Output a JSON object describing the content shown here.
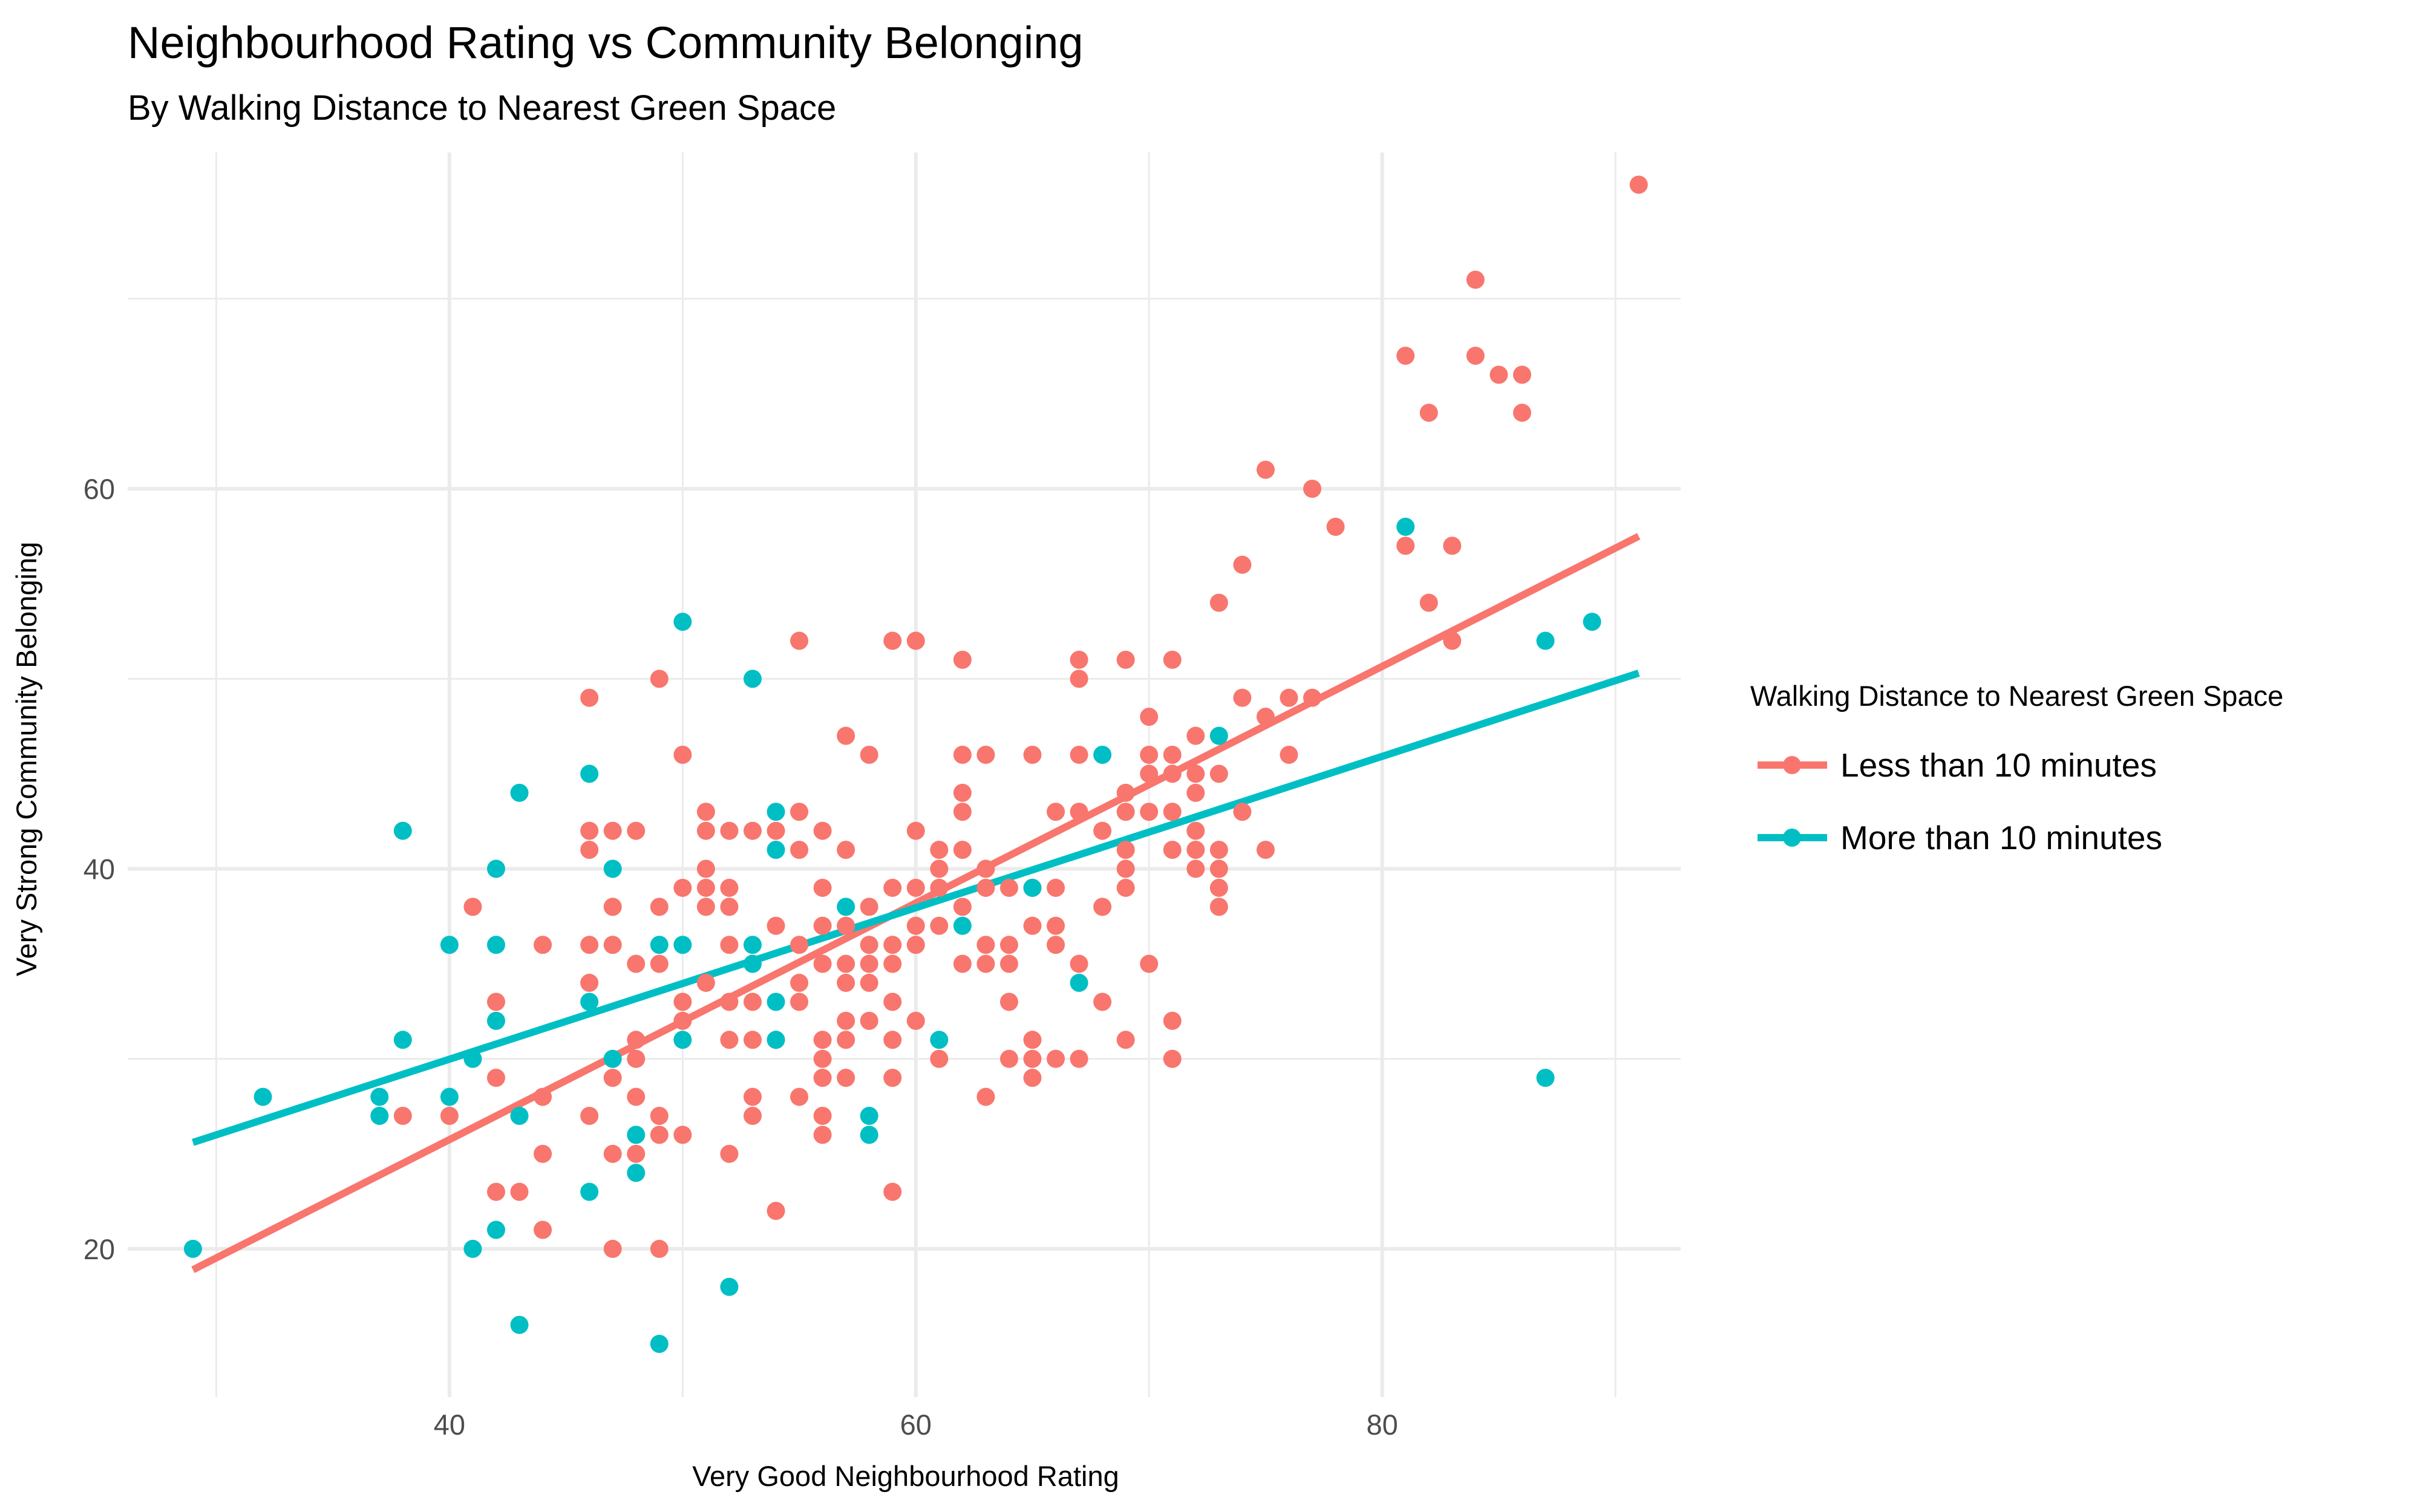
{
  "chart_data": {
    "type": "scatter",
    "title": "Neighbourhood Rating vs Community Belonging",
    "subtitle": "By Walking Distance to Nearest Green Space",
    "xlabel": "Very Good Neighbourhood Rating",
    "ylabel": "Very Strong Community Belonging",
    "xlim": [
      26.2,
      92.8
    ],
    "ylim": [
      12.2,
      77.7
    ],
    "x_ticks": [
      40,
      60,
      80
    ],
    "y_ticks": [
      20,
      40,
      60
    ],
    "grid": true,
    "legend": {
      "title": "Walking Distance to Nearest Green Space",
      "position": "right"
    },
    "series": [
      {
        "name": "Less than 10 minutes",
        "color": "#F8766D",
        "trend": {
          "x": [
            29,
            91
          ],
          "y": [
            18.9,
            57.5
          ]
        },
        "points": [
          [
            38,
            27
          ],
          [
            40,
            27
          ],
          [
            41,
            38
          ],
          [
            42,
            23
          ],
          [
            42,
            29
          ],
          [
            42,
            33
          ],
          [
            43,
            23
          ],
          [
            44,
            21
          ],
          [
            44,
            25
          ],
          [
            44,
            28
          ],
          [
            44,
            36
          ],
          [
            46,
            27
          ],
          [
            46,
            34
          ],
          [
            46,
            36
          ],
          [
            46,
            41
          ],
          [
            46,
            42
          ],
          [
            46,
            49
          ],
          [
            47,
            20
          ],
          [
            47,
            25
          ],
          [
            47,
            29
          ],
          [
            47,
            36
          ],
          [
            47,
            38
          ],
          [
            47,
            42
          ],
          [
            48,
            25
          ],
          [
            48,
            28
          ],
          [
            48,
            30
          ],
          [
            48,
            31
          ],
          [
            48,
            35
          ],
          [
            48,
            42
          ],
          [
            49,
            20
          ],
          [
            49,
            26
          ],
          [
            49,
            27
          ],
          [
            49,
            35
          ],
          [
            49,
            38
          ],
          [
            49,
            50
          ],
          [
            50,
            26
          ],
          [
            50,
            32
          ],
          [
            50,
            33
          ],
          [
            50,
            39
          ],
          [
            50,
            46
          ],
          [
            51,
            34
          ],
          [
            51,
            38
          ],
          [
            51,
            39
          ],
          [
            51,
            40
          ],
          [
            51,
            42
          ],
          [
            51,
            43
          ],
          [
            52,
            25
          ],
          [
            52,
            31
          ],
          [
            52,
            33
          ],
          [
            52,
            36
          ],
          [
            52,
            38
          ],
          [
            52,
            39
          ],
          [
            52,
            42
          ],
          [
            53,
            27
          ],
          [
            53,
            28
          ],
          [
            53,
            31
          ],
          [
            53,
            33
          ],
          [
            53,
            42
          ],
          [
            54,
            22
          ],
          [
            54,
            31
          ],
          [
            54,
            37
          ],
          [
            54,
            42
          ],
          [
            55,
            28
          ],
          [
            55,
            33
          ],
          [
            55,
            34
          ],
          [
            55,
            36
          ],
          [
            55,
            41
          ],
          [
            55,
            43
          ],
          [
            55,
            52
          ],
          [
            56,
            26
          ],
          [
            56,
            27
          ],
          [
            56,
            29
          ],
          [
            56,
            30
          ],
          [
            56,
            31
          ],
          [
            56,
            35
          ],
          [
            56,
            37
          ],
          [
            56,
            39
          ],
          [
            56,
            42
          ],
          [
            57,
            29
          ],
          [
            57,
            31
          ],
          [
            57,
            32
          ],
          [
            57,
            34
          ],
          [
            57,
            35
          ],
          [
            57,
            37
          ],
          [
            57,
            41
          ],
          [
            57,
            47
          ],
          [
            58,
            32
          ],
          [
            58,
            34
          ],
          [
            58,
            35
          ],
          [
            58,
            36
          ],
          [
            58,
            38
          ],
          [
            58,
            46
          ],
          [
            59,
            23
          ],
          [
            59,
            29
          ],
          [
            59,
            31
          ],
          [
            59,
            33
          ],
          [
            59,
            35
          ],
          [
            59,
            36
          ],
          [
            59,
            39
          ],
          [
            59,
            52
          ],
          [
            60,
            32
          ],
          [
            60,
            36
          ],
          [
            60,
            37
          ],
          [
            60,
            39
          ],
          [
            60,
            42
          ],
          [
            60,
            52
          ],
          [
            61,
            30
          ],
          [
            61,
            37
          ],
          [
            61,
            39
          ],
          [
            61,
            40
          ],
          [
            61,
            41
          ],
          [
            62,
            35
          ],
          [
            62,
            38
          ],
          [
            62,
            41
          ],
          [
            62,
            43
          ],
          [
            62,
            44
          ],
          [
            62,
            46
          ],
          [
            62,
            51
          ],
          [
            63,
            28
          ],
          [
            63,
            35
          ],
          [
            63,
            36
          ],
          [
            63,
            39
          ],
          [
            63,
            40
          ],
          [
            63,
            46
          ],
          [
            64,
            30
          ],
          [
            64,
            33
          ],
          [
            64,
            35
          ],
          [
            64,
            36
          ],
          [
            64,
            39
          ],
          [
            65,
            29
          ],
          [
            65,
            30
          ],
          [
            65,
            31
          ],
          [
            65,
            37
          ],
          [
            65,
            39
          ],
          [
            65,
            46
          ],
          [
            66,
            30
          ],
          [
            66,
            36
          ],
          [
            66,
            37
          ],
          [
            66,
            39
          ],
          [
            66,
            43
          ],
          [
            67,
            30
          ],
          [
            67,
            35
          ],
          [
            67,
            43
          ],
          [
            67,
            46
          ],
          [
            67,
            50
          ],
          [
            67,
            51
          ],
          [
            68,
            33
          ],
          [
            68,
            38
          ],
          [
            68,
            42
          ],
          [
            69,
            31
          ],
          [
            69,
            39
          ],
          [
            69,
            40
          ],
          [
            69,
            41
          ],
          [
            69,
            43
          ],
          [
            69,
            44
          ],
          [
            69,
            51
          ],
          [
            70,
            35
          ],
          [
            70,
            43
          ],
          [
            70,
            45
          ],
          [
            70,
            46
          ],
          [
            70,
            48
          ],
          [
            71,
            30
          ],
          [
            71,
            32
          ],
          [
            71,
            41
          ],
          [
            71,
            43
          ],
          [
            71,
            45
          ],
          [
            71,
            46
          ],
          [
            71,
            51
          ],
          [
            72,
            40
          ],
          [
            72,
            41
          ],
          [
            72,
            42
          ],
          [
            72,
            44
          ],
          [
            72,
            45
          ],
          [
            72,
            47
          ],
          [
            73,
            38
          ],
          [
            73,
            39
          ],
          [
            73,
            40
          ],
          [
            73,
            41
          ],
          [
            73,
            45
          ],
          [
            73,
            54
          ],
          [
            74,
            43
          ],
          [
            74,
            49
          ],
          [
            74,
            56
          ],
          [
            75,
            41
          ],
          [
            75,
            48
          ],
          [
            75,
            61
          ],
          [
            76,
            46
          ],
          [
            76,
            49
          ],
          [
            77,
            49
          ],
          [
            77,
            60
          ],
          [
            78,
            58
          ],
          [
            81,
            57
          ],
          [
            81,
            67
          ],
          [
            82,
            54
          ],
          [
            82,
            64
          ],
          [
            83,
            52
          ],
          [
            83,
            57
          ],
          [
            84,
            67
          ],
          [
            84,
            71
          ],
          [
            85,
            66
          ],
          [
            86,
            64
          ],
          [
            86,
            66
          ],
          [
            91,
            76
          ]
        ]
      },
      {
        "name": "More than 10 minutes",
        "color": "#00BFC4",
        "trend": {
          "x": [
            29,
            91
          ],
          "y": [
            25.6,
            50.3
          ]
        },
        "points": [
          [
            29,
            20
          ],
          [
            32,
            28
          ],
          [
            37,
            27
          ],
          [
            37,
            28
          ],
          [
            38,
            31
          ],
          [
            38,
            42
          ],
          [
            40,
            28
          ],
          [
            40,
            36
          ],
          [
            41,
            20
          ],
          [
            41,
            30
          ],
          [
            42,
            21
          ],
          [
            42,
            32
          ],
          [
            42,
            36
          ],
          [
            42,
            40
          ],
          [
            43,
            16
          ],
          [
            43,
            27
          ],
          [
            43,
            44
          ],
          [
            46,
            23
          ],
          [
            46,
            33
          ],
          [
            46,
            45
          ],
          [
            47,
            30
          ],
          [
            47,
            40
          ],
          [
            48,
            24
          ],
          [
            48,
            26
          ],
          [
            49,
            15
          ],
          [
            49,
            36
          ],
          [
            50,
            31
          ],
          [
            50,
            36
          ],
          [
            50,
            53
          ],
          [
            52,
            18
          ],
          [
            53,
            35
          ],
          [
            53,
            36
          ],
          [
            53,
            50
          ],
          [
            54,
            31
          ],
          [
            54,
            33
          ],
          [
            54,
            41
          ],
          [
            54,
            43
          ],
          [
            57,
            38
          ],
          [
            58,
            26
          ],
          [
            58,
            27
          ],
          [
            61,
            31
          ],
          [
            62,
            37
          ],
          [
            65,
            39
          ],
          [
            67,
            34
          ],
          [
            68,
            46
          ],
          [
            73,
            47
          ],
          [
            81,
            58
          ],
          [
            87,
            29
          ],
          [
            87,
            52
          ],
          [
            89,
            53
          ]
        ]
      }
    ]
  }
}
